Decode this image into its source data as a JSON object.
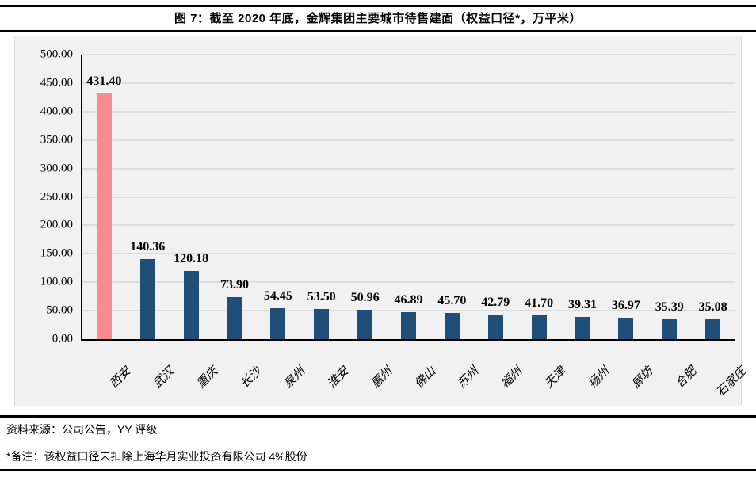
{
  "header": {
    "title": "图 7：截至 2020 年底，金辉集团主要城市待售建面（权益口径*，万平米）"
  },
  "chart_data": {
    "type": "bar",
    "title": "截至 2020 年底，金辉集团主要城市待售建面（权益口径*，万平米）",
    "categories": [
      "西安",
      "武汉",
      "重庆",
      "长沙",
      "泉州",
      "淮安",
      "惠州",
      "佛山",
      "苏州",
      "福州",
      "天津",
      "扬州",
      "廊坊",
      "合肥",
      "石家庄"
    ],
    "values": [
      431.4,
      140.36,
      120.18,
      73.9,
      54.45,
      53.5,
      50.96,
      46.89,
      45.7,
      42.79,
      41.7,
      39.31,
      36.97,
      35.39,
      35.08
    ],
    "value_label_decimals": 2,
    "xlabel": "",
    "ylabel": "",
    "ylim": [
      0,
      500
    ],
    "ytick_step": 50,
    "ytick_decimals": 2,
    "grid": true,
    "legend_position": "none",
    "highlight_index": 0,
    "colors": {
      "bar": "#1f4e79",
      "highlight_bar": "#fc8c8c",
      "plot_background": "#f1f1f1",
      "gridline": "#dcdcdc",
      "axis": "#000000"
    }
  },
  "footer": {
    "source": "资料来源：公司公告，YY 评级",
    "note": "*备注：该权益口径未扣除上海华月实业投资有限公司 4%股份"
  }
}
